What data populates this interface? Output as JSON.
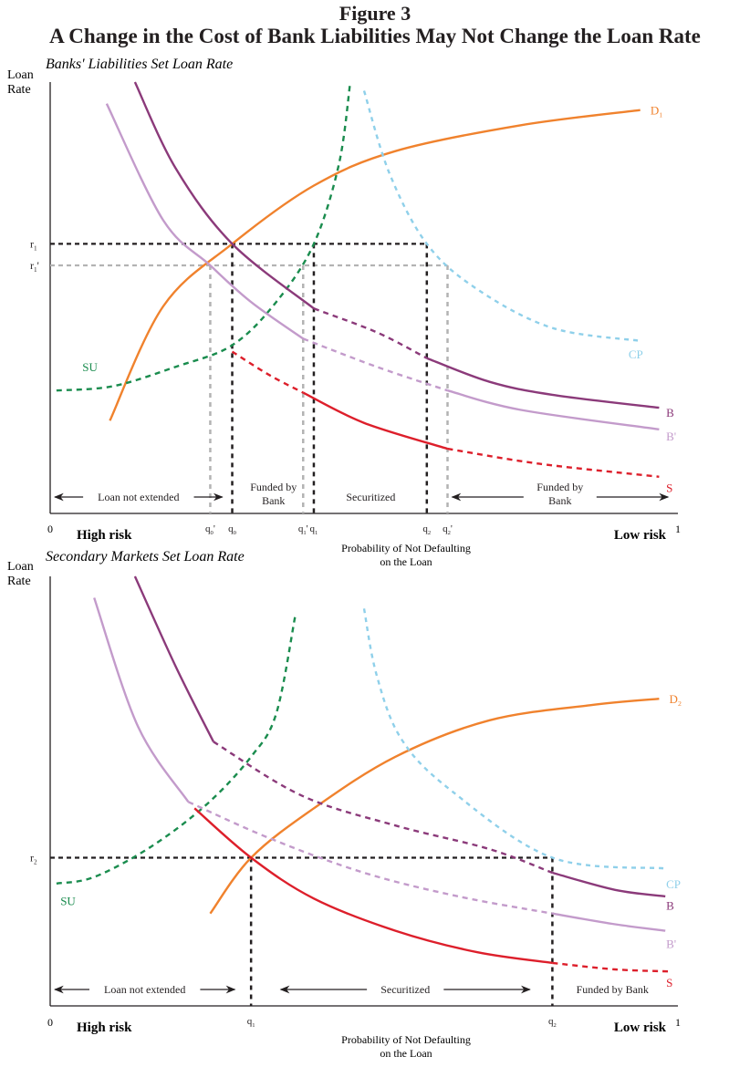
{
  "figure": {
    "label": "Figure 3",
    "title": "A Change in the Cost of Bank Liabilities May Not Change the Loan Rate"
  },
  "colors": {
    "D": "#f0822d",
    "B": "#8b3a7a",
    "Bprime": "#c39bcb",
    "S": "#dd1f2b",
    "SU": "#1a8c4e",
    "CP": "#8fd0ea",
    "guide_black": "#231f20",
    "guide_gray": "#b3b3b3",
    "axis": "#231f20"
  },
  "chart_data": [
    {
      "type": "line",
      "title": "Banks' Liabilities Set Loan Rate",
      "ylabel": "Loan Rate",
      "xlabel": "Probability of Not Defaulting on the Loan",
      "xlim": [
        0,
        1
      ],
      "ylim": [
        0,
        1
      ],
      "x_end_labels": {
        "left": "0",
        "right": "1"
      },
      "risk_labels": {
        "left": "High risk",
        "right": "Low risk"
      },
      "y_ticks": [
        {
          "label": "r1",
          "value": 0.625,
          "style": "black"
        },
        {
          "label": "r1'",
          "value": 0.575,
          "style": "gray"
        }
      ],
      "x_ticks": [
        {
          "label": "q0'",
          "value": 0.255,
          "style": "gray"
        },
        {
          "label": "q0",
          "value": 0.29,
          "style": "black"
        },
        {
          "label": "q1'",
          "value": 0.403,
          "style": "gray"
        },
        {
          "label": "q1",
          "value": 0.42,
          "style": "black"
        },
        {
          "label": "q2",
          "value": 0.6,
          "style": "black"
        },
        {
          "label": "q2'",
          "value": 0.633,
          "style": "gray"
        }
      ],
      "regions": [
        {
          "label": "Loan not extended",
          "from": 0,
          "to": 0.28,
          "arrows": "both"
        },
        {
          "label": "Funded by Bank",
          "from": 0.29,
          "to": 0.42,
          "arrows": "none"
        },
        {
          "label": "Securitized",
          "from": 0.42,
          "to": 0.6,
          "arrows": "none"
        },
        {
          "label": "Funded by Bank",
          "from": 0.633,
          "to": 0.99,
          "arrows": "both"
        }
      ],
      "series": [
        {
          "name": "D1",
          "color_key": "D",
          "style": "solid",
          "points": [
            [
              0.095,
              0.215
            ],
            [
              0.18,
              0.48
            ],
            [
              0.29,
              0.625
            ],
            [
              0.42,
              0.76
            ],
            [
              0.55,
              0.84
            ],
            [
              0.75,
              0.9
            ],
            [
              0.94,
              0.935
            ]
          ]
        },
        {
          "name": "SU",
          "color_key": "SU",
          "style": "dashed",
          "points": [
            [
              0.01,
              0.285
            ],
            [
              0.1,
              0.295
            ],
            [
              0.2,
              0.34
            ],
            [
              0.29,
              0.39
            ],
            [
              0.36,
              0.49
            ],
            [
              0.42,
              0.625
            ],
            [
              0.46,
              0.81
            ],
            [
              0.478,
              1.0
            ]
          ]
        },
        {
          "name": "CP",
          "color_key": "CP",
          "style": "dotted",
          "points": [
            [
              0.5,
              0.98
            ],
            [
              0.54,
              0.79
            ],
            [
              0.6,
              0.625
            ],
            [
              0.68,
              0.52
            ],
            [
              0.8,
              0.43
            ],
            [
              0.94,
              0.4
            ]
          ]
        },
        {
          "name": "B",
          "color_key": "B",
          "style": "solid",
          "points": [
            [
              0.135,
              1.0
            ],
            [
              0.2,
              0.8
            ],
            [
              0.29,
              0.625
            ],
            [
              0.42,
              0.475
            ]
          ]
        },
        {
          "name": "B",
          "color_key": "B",
          "style": "dashed",
          "points": [
            [
              0.42,
              0.475
            ],
            [
              0.52,
              0.42
            ],
            [
              0.6,
              0.36
            ]
          ]
        },
        {
          "name": "B",
          "color_key": "B",
          "style": "solid",
          "points": [
            [
              0.6,
              0.36
            ],
            [
              0.7,
              0.305
            ],
            [
              0.8,
              0.275
            ],
            [
              0.97,
              0.245
            ]
          ]
        },
        {
          "name": "B'",
          "color_key": "Bprime",
          "style": "solid",
          "points": [
            [
              0.09,
              0.95
            ],
            [
              0.18,
              0.68
            ],
            [
              0.255,
              0.575
            ],
            [
              0.32,
              0.49
            ],
            [
              0.403,
              0.405
            ]
          ]
        },
        {
          "name": "B'",
          "color_key": "Bprime",
          "style": "dashed",
          "points": [
            [
              0.403,
              0.405
            ],
            [
              0.52,
              0.34
            ],
            [
              0.633,
              0.285
            ]
          ]
        },
        {
          "name": "B'",
          "color_key": "Bprime",
          "style": "solid",
          "points": [
            [
              0.633,
              0.285
            ],
            [
              0.75,
              0.24
            ],
            [
              0.97,
              0.195
            ]
          ]
        },
        {
          "name": "S",
          "color_key": "S",
          "style": "dashed",
          "points": [
            [
              0.29,
              0.375
            ],
            [
              0.35,
              0.32
            ],
            [
              0.403,
              0.28
            ]
          ]
        },
        {
          "name": "S",
          "color_key": "S",
          "style": "solid",
          "points": [
            [
              0.403,
              0.28
            ],
            [
              0.5,
              0.21
            ],
            [
              0.633,
              0.15
            ]
          ]
        },
        {
          "name": "S",
          "color_key": "S",
          "style": "dashed",
          "points": [
            [
              0.633,
              0.15
            ],
            [
              0.78,
              0.115
            ],
            [
              0.97,
              0.085
            ]
          ]
        }
      ],
      "curve_labels": [
        {
          "text": "D1",
          "color_key": "D",
          "x": 0.965,
          "y": 0.935
        },
        {
          "text": "SU",
          "color_key": "SU",
          "x": 0.06,
          "y": 0.34
        },
        {
          "text": "CP",
          "color_key": "CP",
          "x": 0.93,
          "y": 0.37
        },
        {
          "text": "B",
          "color_key": "B",
          "x": 0.99,
          "y": 0.235
        },
        {
          "text": "B'",
          "color_key": "Bprime",
          "x": 0.99,
          "y": 0.18
        },
        {
          "text": "S",
          "color_key": "S",
          "x": 0.99,
          "y": 0.06
        }
      ]
    },
    {
      "type": "line",
      "title": "Secondary Markets Set Loan Rate",
      "ylabel": "Loan Rate",
      "xlabel": "Probability of Not Defaulting on the Loan",
      "xlim": [
        0,
        1
      ],
      "ylim": [
        0,
        1
      ],
      "x_end_labels": {
        "left": "0",
        "right": "1"
      },
      "risk_labels": {
        "left": "High risk",
        "right": "Low risk"
      },
      "y_ticks": [
        {
          "label": "r2",
          "value": 0.345,
          "style": "black"
        }
      ],
      "x_ticks": [
        {
          "label": "q1",
          "value": 0.32,
          "style": "black"
        },
        {
          "label": "q2",
          "value": 0.8,
          "style": "black"
        }
      ],
      "regions": [
        {
          "label": "Loan not extended",
          "from": 0,
          "to": 0.3,
          "arrows": "both"
        },
        {
          "label": "Securitized",
          "from": 0.36,
          "to": 0.77,
          "arrows": "both"
        },
        {
          "label": "Funded by Bank",
          "from": 0.8,
          "to": 0.99,
          "arrows": "none"
        }
      ],
      "series": [
        {
          "name": "D2",
          "color_key": "D",
          "style": "solid",
          "points": [
            [
              0.255,
              0.215
            ],
            [
              0.32,
              0.345
            ],
            [
              0.42,
              0.46
            ],
            [
              0.55,
              0.58
            ],
            [
              0.7,
              0.665
            ],
            [
              0.86,
              0.7
            ],
            [
              0.97,
              0.715
            ]
          ]
        },
        {
          "name": "SU",
          "color_key": "SU",
          "style": "dashed",
          "points": [
            [
              0.01,
              0.285
            ],
            [
              0.07,
              0.3
            ],
            [
              0.16,
              0.37
            ],
            [
              0.25,
              0.47
            ],
            [
              0.32,
              0.58
            ],
            [
              0.36,
              0.68
            ],
            [
              0.39,
              0.905
            ]
          ]
        },
        {
          "name": "CP",
          "color_key": "CP",
          "style": "dotted",
          "points": [
            [
              0.5,
              0.925
            ],
            [
              0.52,
              0.77
            ],
            [
              0.56,
              0.62
            ],
            [
              0.64,
              0.5
            ],
            [
              0.8,
              0.345
            ],
            [
              0.98,
              0.32
            ]
          ]
        },
        {
          "name": "B",
          "color_key": "B",
          "style": "solid",
          "points": [
            [
              0.135,
              1.0
            ],
            [
              0.2,
              0.79
            ],
            [
              0.26,
              0.615
            ]
          ]
        },
        {
          "name": "B",
          "color_key": "B",
          "style": "dashed",
          "points": [
            [
              0.26,
              0.615
            ],
            [
              0.4,
              0.49
            ],
            [
              0.55,
              0.42
            ],
            [
              0.7,
              0.365
            ],
            [
              0.8,
              0.31
            ]
          ]
        },
        {
          "name": "B",
          "color_key": "B",
          "style": "solid",
          "points": [
            [
              0.8,
              0.31
            ],
            [
              0.9,
              0.27
            ],
            [
              0.98,
              0.255
            ]
          ]
        },
        {
          "name": "B'",
          "color_key": "Bprime",
          "style": "solid",
          "points": [
            [
              0.07,
              0.95
            ],
            [
              0.14,
              0.65
            ],
            [
              0.22,
              0.475
            ]
          ]
        },
        {
          "name": "B'",
          "color_key": "Bprime",
          "style": "dashed",
          "points": [
            [
              0.22,
              0.475
            ],
            [
              0.35,
              0.39
            ],
            [
              0.5,
              0.31
            ],
            [
              0.65,
              0.255
            ],
            [
              0.8,
              0.215
            ]
          ]
        },
        {
          "name": "B'",
          "color_key": "Bprime",
          "style": "solid",
          "points": [
            [
              0.8,
              0.215
            ],
            [
              0.9,
              0.19
            ],
            [
              0.98,
              0.175
            ]
          ]
        },
        {
          "name": "S",
          "color_key": "S",
          "style": "solid",
          "points": [
            [
              0.23,
              0.46
            ],
            [
              0.32,
              0.345
            ],
            [
              0.42,
              0.25
            ],
            [
              0.55,
              0.175
            ],
            [
              0.68,
              0.125
            ],
            [
              0.8,
              0.1
            ]
          ]
        },
        {
          "name": "S",
          "color_key": "S",
          "style": "dashed",
          "points": [
            [
              0.8,
              0.1
            ],
            [
              0.9,
              0.085
            ],
            [
              0.99,
              0.08
            ]
          ]
        }
      ],
      "curve_labels": [
        {
          "text": "D2",
          "color_key": "D",
          "x": 0.995,
          "y": 0.715
        },
        {
          "text": "SU",
          "color_key": "SU",
          "x": 0.025,
          "y": 0.245
        },
        {
          "text": "CP",
          "color_key": "CP",
          "x": 0.99,
          "y": 0.285
        },
        {
          "text": "B",
          "color_key": "B",
          "x": 0.99,
          "y": 0.235
        },
        {
          "text": "B'",
          "color_key": "Bprime",
          "x": 0.99,
          "y": 0.145
        },
        {
          "text": "S",
          "color_key": "S",
          "x": 0.99,
          "y": 0.055
        }
      ]
    }
  ]
}
